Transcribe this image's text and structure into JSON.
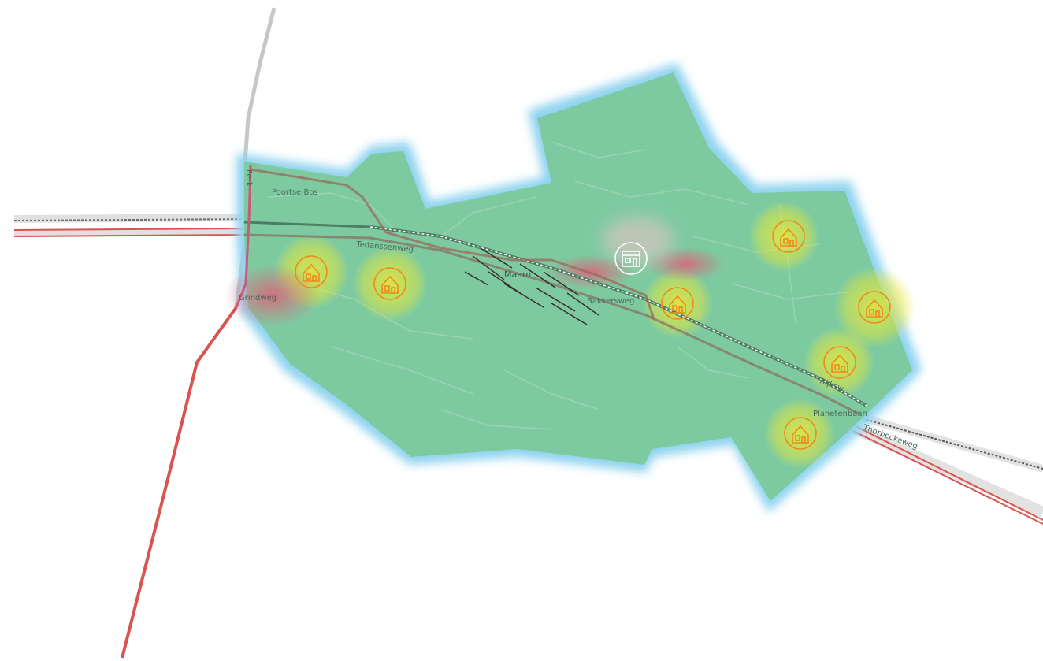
{
  "map": {
    "labels": {
      "poortse_bos": "Poortse Bos",
      "tedanssenweg": "Tedanssenweg",
      "maarn": "Maarn",
      "grindweg": "Grindweg",
      "bakkersweg": "Bakkersweg",
      "planetenbaan": "Planetenbaan",
      "thorbeckeweg": "Thorbeckeweg",
      "rijksweg": "Rijksw",
      "vertical_road": "Perk"
    },
    "colors": {
      "area_fill": "#7cc99a",
      "area_border": "#8fd3ef",
      "home_icon": "#ef8a1a",
      "heat_yellow": "#e5e63a",
      "heat_red": "#e06a7d",
      "main_road": "#d9534f",
      "railway": "#555555",
      "secondary_road": "#9a6a5a"
    },
    "icons": {
      "home": "house-icon",
      "station": "building-icon"
    }
  }
}
